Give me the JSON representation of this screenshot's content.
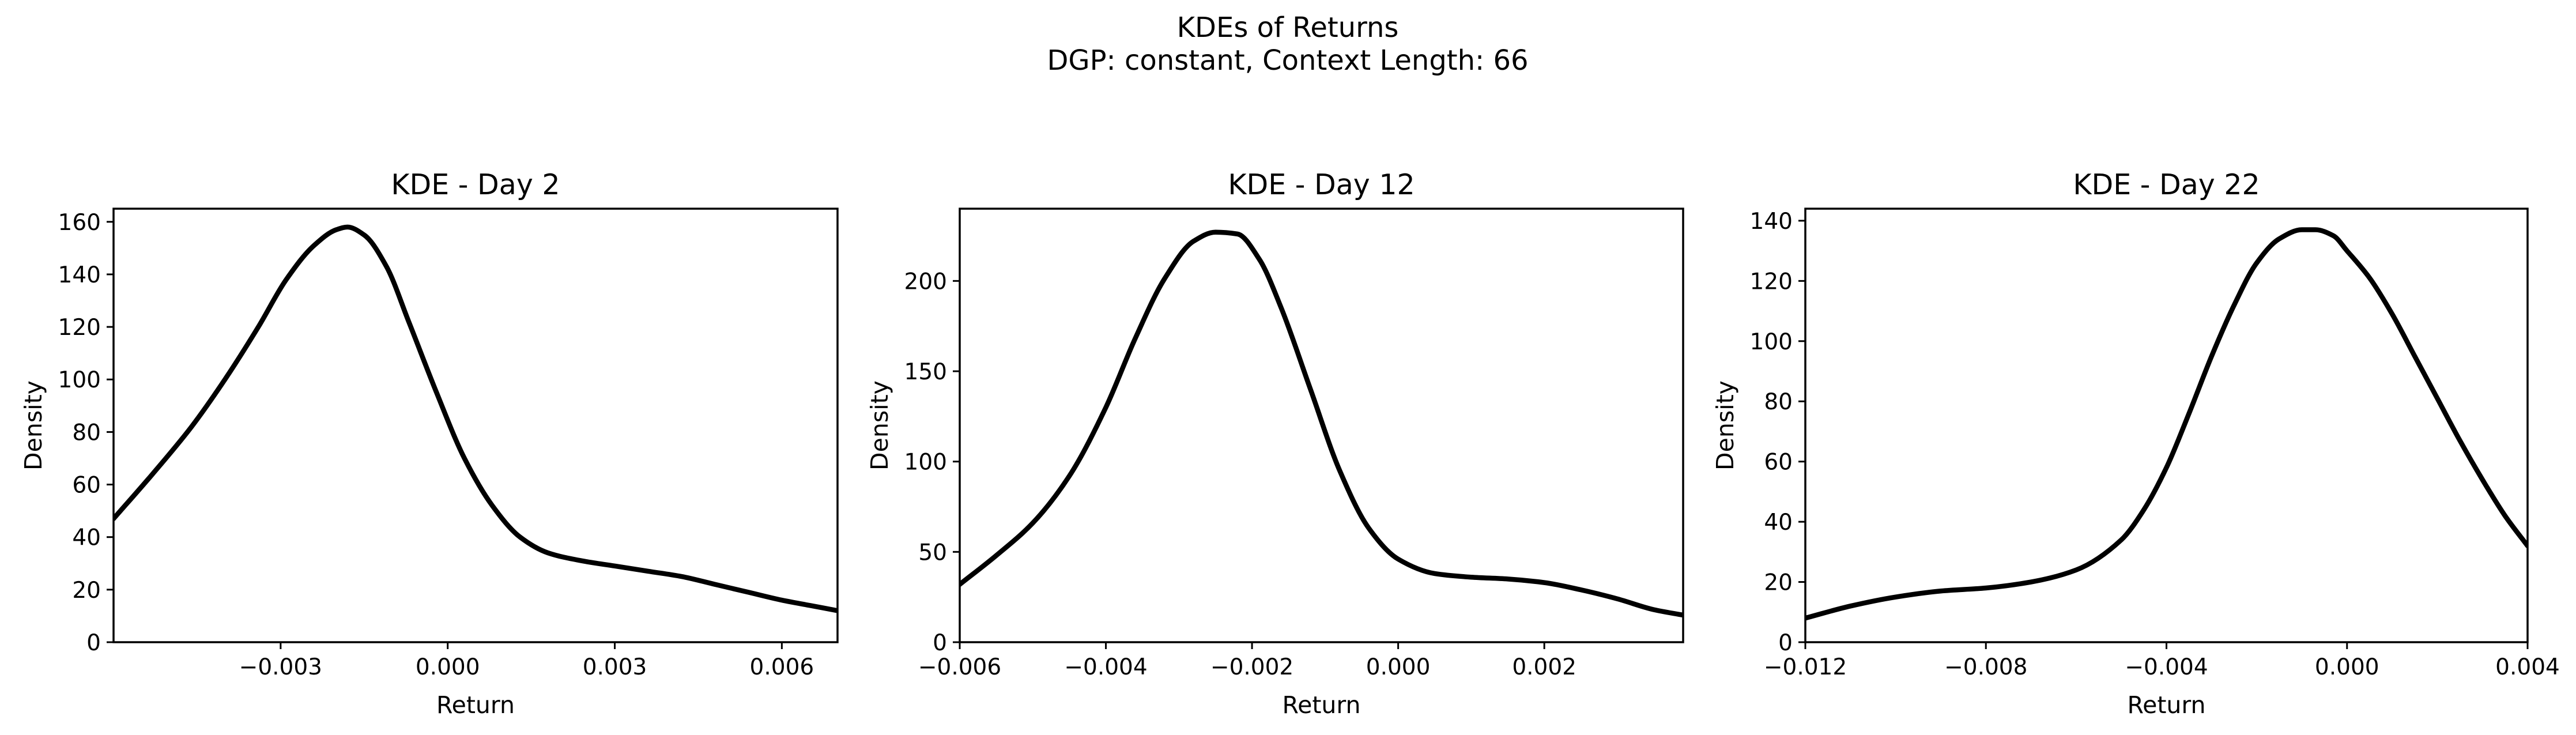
{
  "figure": {
    "title_line1": "KDEs of Returns",
    "title_line2": "DGP: constant, Context Length: 66"
  },
  "chart_data": [
    {
      "type": "line",
      "title": "KDE - Day 2",
      "xlabel": "Return",
      "ylabel": "Density",
      "xlim": [
        -0.006,
        0.007
      ],
      "ylim": [
        0,
        165
      ],
      "xticks": [
        -0.003,
        0.0,
        0.003,
        0.006
      ],
      "xtick_labels": [
        "−0.003",
        "0.000",
        "0.003",
        "0.006"
      ],
      "yticks": [
        0,
        20,
        40,
        60,
        80,
        100,
        120,
        140,
        160
      ],
      "ytick_labels": [
        "0",
        "20",
        "40",
        "60",
        "80",
        "100",
        "120",
        "140",
        "160"
      ],
      "grid": false,
      "color": "#000000",
      "x": [
        -0.006,
        -0.0053,
        -0.0046,
        -0.004,
        -0.0034,
        -0.0029,
        -0.0024,
        -0.002,
        -0.0018,
        -0.0015,
        -0.0011,
        -0.0007,
        -0.0002,
        0.0003,
        0.0008,
        0.0013,
        0.0018,
        0.0024,
        0.003,
        0.0036,
        0.0042,
        0.0048,
        0.0054,
        0.006,
        0.0065,
        0.007
      ],
      "y": [
        47,
        64,
        82,
        100,
        120,
        138,
        151,
        157,
        158,
        155,
        143,
        122,
        95,
        70,
        52,
        40,
        34,
        31,
        29,
        27,
        25,
        22,
        19,
        16,
        14,
        12
      ]
    },
    {
      "type": "line",
      "title": "KDE - Day 12",
      "xlabel": "Return",
      "ylabel": "Density",
      "xlim": [
        -0.006,
        0.0039
      ],
      "ylim": [
        0,
        240
      ],
      "xticks": [
        -0.006,
        -0.004,
        -0.002,
        0.0,
        0.002
      ],
      "xtick_labels": [
        "−0.006",
        "−0.004",
        "−0.002",
        "0.000",
        "0.002"
      ],
      "yticks": [
        0,
        50,
        100,
        150,
        200
      ],
      "ytick_labels": [
        "0",
        "50",
        "100",
        "150",
        "200"
      ],
      "grid": false,
      "color": "#000000",
      "x": [
        -0.006,
        -0.0055,
        -0.005,
        -0.0045,
        -0.004,
        -0.0036,
        -0.0032,
        -0.0028,
        -0.0025,
        -0.0022,
        -0.0019,
        -0.0016,
        -0.0012,
        -0.0008,
        -0.0004,
        0.0,
        0.0005,
        0.001,
        0.0015,
        0.002,
        0.0025,
        0.003,
        0.0035,
        0.0039
      ],
      "y": [
        32,
        48,
        66,
        92,
        130,
        168,
        201,
        222,
        227,
        226,
        212,
        185,
        140,
        95,
        63,
        46,
        38,
        36,
        35,
        33,
        29,
        24,
        18,
        15
      ]
    },
    {
      "type": "line",
      "title": "KDE - Day 22",
      "xlabel": "Return",
      "ylabel": "Density",
      "xlim": [
        -0.012,
        0.004
      ],
      "ylim": [
        0,
        144
      ],
      "xticks": [
        -0.012,
        -0.008,
        -0.004,
        0.0,
        0.004
      ],
      "xtick_labels": [
        "−0.012",
        "−0.008",
        "−0.004",
        "0.000",
        "0.004"
      ],
      "yticks": [
        0,
        20,
        40,
        60,
        80,
        100,
        120,
        140
      ],
      "ytick_labels": [
        "0",
        "20",
        "40",
        "60",
        "80",
        "100",
        "120",
        "140"
      ],
      "grid": false,
      "color": "#000000",
      "x": [
        -0.012,
        -0.011,
        -0.01,
        -0.009,
        -0.008,
        -0.007,
        -0.006,
        -0.005,
        -0.0045,
        -0.004,
        -0.0035,
        -0.003,
        -0.0025,
        -0.002,
        -0.0015,
        -0.001,
        -0.0007,
        -0.0003,
        0.0,
        0.0005,
        0.001,
        0.0015,
        0.002,
        0.0025,
        0.003,
        0.0035,
        0.004
      ],
      "y": [
        8,
        12,
        15,
        17,
        18,
        20,
        24,
        34,
        44,
        58,
        76,
        95,
        112,
        126,
        134,
        137,
        137,
        135,
        130,
        121,
        109,
        95,
        81,
        67,
        54,
        42,
        32
      ]
    }
  ]
}
